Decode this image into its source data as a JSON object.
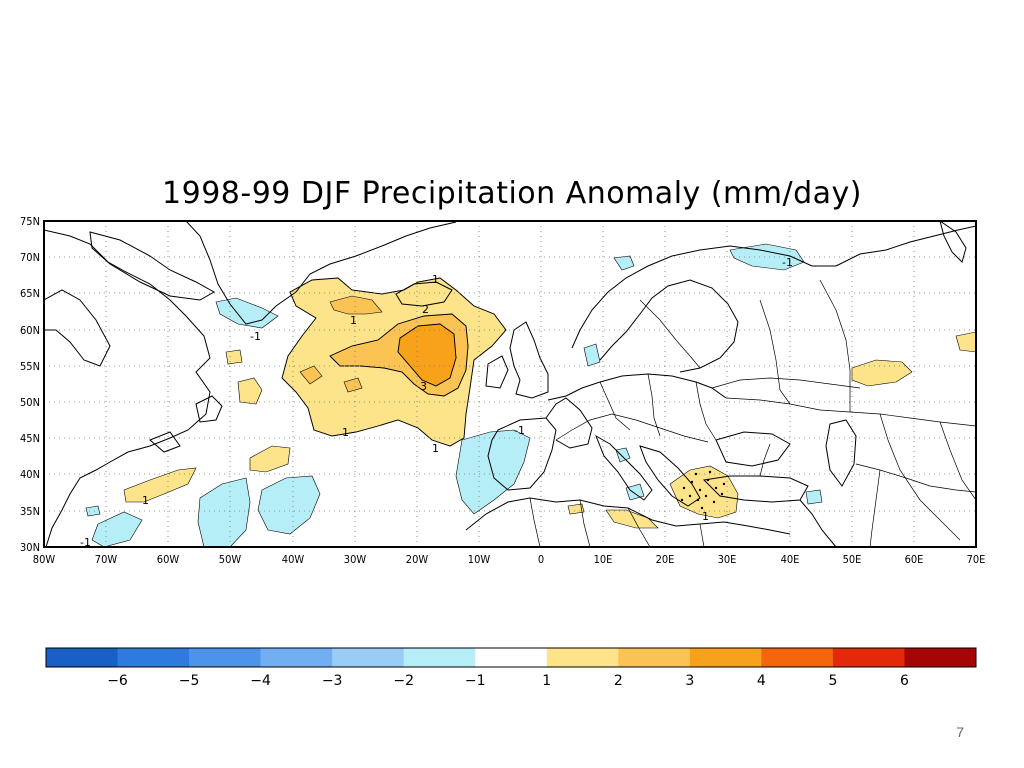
{
  "title": "1998-99 DJF Precipitation Anomaly (mm/day)",
  "page_number": "7",
  "axes": {
    "lat_labels": [
      "75N",
      "70N",
      "65N",
      "60N",
      "55N",
      "50N",
      "45N",
      "40N",
      "35N",
      "30N"
    ],
    "lon_labels": [
      "80W",
      "70W",
      "60W",
      "50W",
      "40W",
      "30W",
      "20W",
      "10W",
      "0",
      "10E",
      "20E",
      "30E",
      "40E",
      "50E",
      "60E",
      "70E"
    ]
  },
  "contour_labels": [
    "1",
    "2",
    "1",
    "-1",
    "3",
    "1",
    "1",
    "-1",
    "1",
    "-1",
    "-1",
    "1"
  ],
  "colorbar": {
    "colors": [
      "#1a5fc8",
      "#2f7ae0",
      "#4e93ea",
      "#72aef2",
      "#99ccf6",
      "#b5eef7",
      "#ffffff",
      "#fde38a",
      "#fbc354",
      "#f8a21c",
      "#f4650c",
      "#e22a0a",
      "#a50505"
    ],
    "labels": [
      "-6",
      "-5",
      "-4",
      "-3",
      "-2",
      "-1",
      "1",
      "2",
      "3",
      "4",
      "5",
      "6"
    ]
  },
  "colors": {
    "neg1": "#b5eef7",
    "pos1": "#fde38a",
    "pos2": "#fbc354",
    "pos3": "#f8a21c"
  }
}
